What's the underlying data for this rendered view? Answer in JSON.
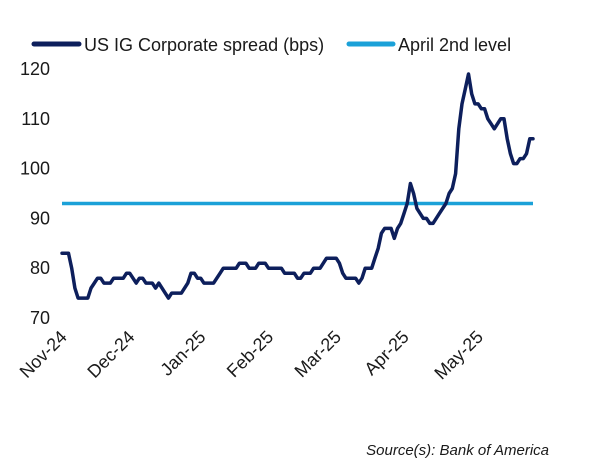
{
  "chart_data": {
    "type": "line",
    "y_ticks": [
      "70",
      "80",
      "90",
      "100",
      "110",
      "120"
    ],
    "ylim": [
      70,
      120
    ],
    "x_ticks": [
      "Nov-24",
      "Dec-24",
      "Jan-25",
      "Feb-25",
      "Mar-25",
      "Apr-25",
      "May-25"
    ],
    "grid": false,
    "legend_position": "top",
    "series": [
      {
        "name": "US IG Corporate spread (bps)",
        "color": "#0d1f5c",
        "values": [
          83,
          83,
          83,
          80,
          76,
          74,
          74,
          74,
          74,
          76,
          77,
          78,
          78,
          77,
          77,
          77,
          78,
          78,
          78,
          78,
          79,
          79,
          78,
          77,
          78,
          78,
          77,
          77,
          77,
          76,
          77,
          76,
          75,
          74,
          75,
          75,
          75,
          75,
          76,
          77,
          79,
          79,
          78,
          78,
          77,
          77,
          77,
          77,
          78,
          79,
          80,
          80,
          80,
          80,
          80,
          81,
          81,
          81,
          80,
          80,
          80,
          81,
          81,
          81,
          80,
          80,
          80,
          80,
          80,
          79,
          79,
          79,
          79,
          78,
          78,
          79,
          79,
          79,
          80,
          80,
          80,
          81,
          82,
          82,
          82,
          82,
          81,
          79,
          78,
          78,
          78,
          78,
          77,
          78,
          80,
          80,
          80,
          82,
          84,
          87,
          88,
          88,
          88,
          86,
          88,
          89,
          91,
          93,
          97,
          95,
          92,
          91,
          90,
          90,
          89,
          89,
          90,
          91,
          92,
          93,
          95,
          96,
          99,
          108,
          113,
          116,
          119,
          115,
          113,
          113,
          112,
          112,
          110,
          109,
          108,
          109,
          110,
          110,
          106,
          103,
          101,
          101,
          102,
          102,
          103,
          106,
          106
        ],
        "x_tick_index": [
          0,
          21,
          43,
          64,
          85,
          106,
          129
        ]
      },
      {
        "name": "April 2nd level",
        "color": "#1ba1d8",
        "values": [
          93,
          93
        ]
      }
    ],
    "source": "Source(s): Bank of America"
  }
}
